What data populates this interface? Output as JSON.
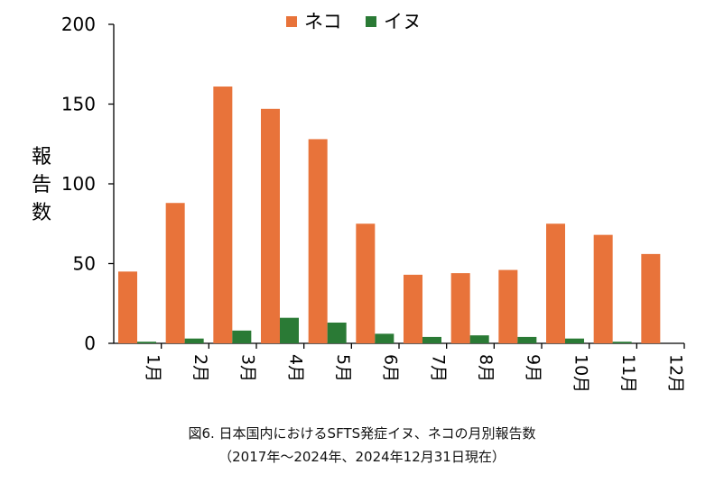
{
  "chart_data": {
    "type": "bar",
    "categories": [
      "1月",
      "2月",
      "3月",
      "4月",
      "5月",
      "6月",
      "7月",
      "8月",
      "9月",
      "10月",
      "11月",
      "12月"
    ],
    "series": [
      {
        "name": "ネコ",
        "color": "#e8733a",
        "values": [
          45,
          88,
          161,
          147,
          128,
          75,
          43,
          44,
          46,
          75,
          68,
          56
        ]
      },
      {
        "name": "イヌ",
        "color": "#2a7a35",
        "values": [
          1,
          3,
          8,
          16,
          13,
          6,
          4,
          5,
          4,
          3,
          1,
          0
        ]
      }
    ],
    "ylabel": "報告数",
    "ylim": [
      0,
      200
    ],
    "yticks": [
      0,
      50,
      100,
      150,
      200
    ],
    "grid": false,
    "legend": "top-center"
  },
  "caption": {
    "line1": "図6. 日本国内におけるSFTS発症イヌ、ネコの月別報告数",
    "line2": "（2017年〜2024年、2024年12月31日現在）"
  }
}
